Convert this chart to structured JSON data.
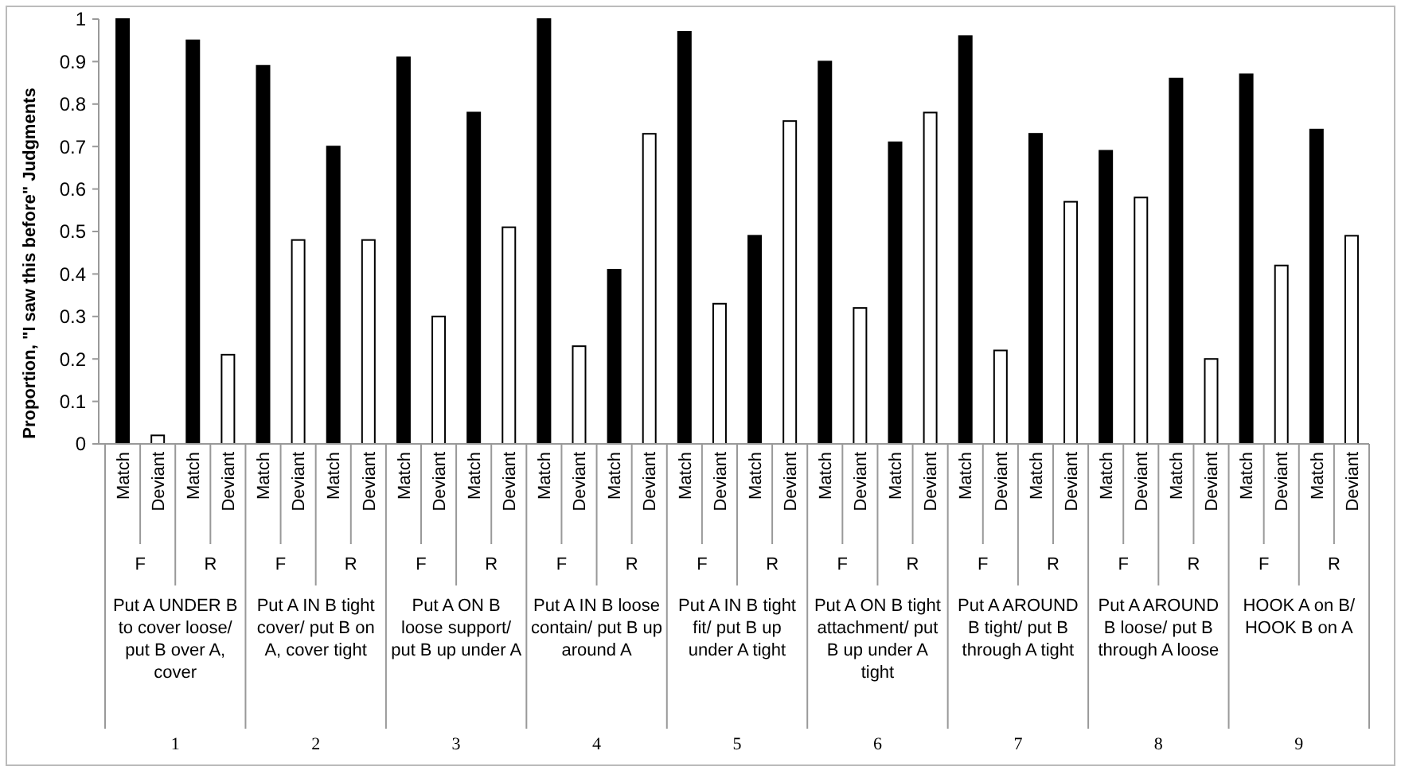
{
  "chart_data": {
    "type": "bar",
    "ylabel": "Proportion, \"I saw this before\" Judgments",
    "categories": [
      "Match",
      "Deviant",
      "Match",
      "Deviant",
      "Match",
      "Deviant",
      "Match",
      "Deviant",
      "Match",
      "Deviant",
      "Match",
      "Deviant",
      "Match",
      "Deviant",
      "Match",
      "Deviant",
      "Match",
      "Deviant",
      "Match",
      "Deviant",
      "Match",
      "Deviant",
      "Match",
      "Deviant",
      "Match",
      "Deviant",
      "Match",
      "Deviant",
      "Match",
      "Deviant",
      "Match",
      "Deviant",
      "Match",
      "Deviant",
      "Match",
      "Deviant"
    ],
    "values": [
      1.0,
      0.02,
      0.95,
      0.21,
      0.89,
      0.48,
      0.7,
      0.48,
      0.91,
      0.3,
      0.78,
      0.51,
      1.0,
      0.23,
      0.41,
      0.73,
      0.97,
      0.33,
      0.49,
      0.76,
      0.9,
      0.32,
      0.71,
      0.78,
      0.96,
      0.22,
      0.73,
      0.57,
      0.69,
      0.58,
      0.86,
      0.2,
      0.87,
      0.42,
      0.74,
      0.49
    ],
    "colors": [
      "#000000",
      "#ffffff",
      "#000000",
      "#ffffff",
      "#000000",
      "#ffffff",
      "#000000",
      "#ffffff",
      "#000000",
      "#ffffff",
      "#000000",
      "#ffffff",
      "#000000",
      "#ffffff",
      "#000000",
      "#ffffff",
      "#000000",
      "#ffffff",
      "#000000",
      "#ffffff",
      "#000000",
      "#ffffff",
      "#000000",
      "#ffffff",
      "#000000",
      "#ffffff",
      "#000000",
      "#ffffff",
      "#000000",
      "#ffffff",
      "#000000",
      "#ffffff",
      "#000000",
      "#ffffff",
      "#000000",
      "#ffffff"
    ],
    "ylim": [
      0,
      1
    ],
    "yticks": [
      0,
      0.1,
      0.2,
      0.3,
      0.4,
      0.5,
      0.6,
      0.7,
      0.8,
      0.9,
      1
    ],
    "grid": false,
    "annotations": [
      "F",
      "R",
      "F",
      "R",
      "F",
      "R",
      "F",
      "R",
      "F",
      "R",
      "F",
      "R",
      "F",
      "R",
      "F",
      "R",
      "F",
      "R",
      "Put A UNDER B to cover loose/ put B over A, cover",
      "Put A IN B tight cover/ put B on A, cover tight",
      "Put A ON B loose support/ put B up under A",
      "Put A IN B loose contain/ put B up around A",
      "Put A IN B tight fit/ put B up under A tight",
      "Put A ON B tight attachment/ put B up under A tight",
      "Put A AROUND B tight/ put B through A tight",
      "Put A AROUND B loose/ put B through A loose",
      "HOOK A on B/ HOOK B on A",
      "1",
      "2",
      "3",
      "4",
      "5",
      "6",
      "7",
      "8",
      "9"
    ]
  }
}
